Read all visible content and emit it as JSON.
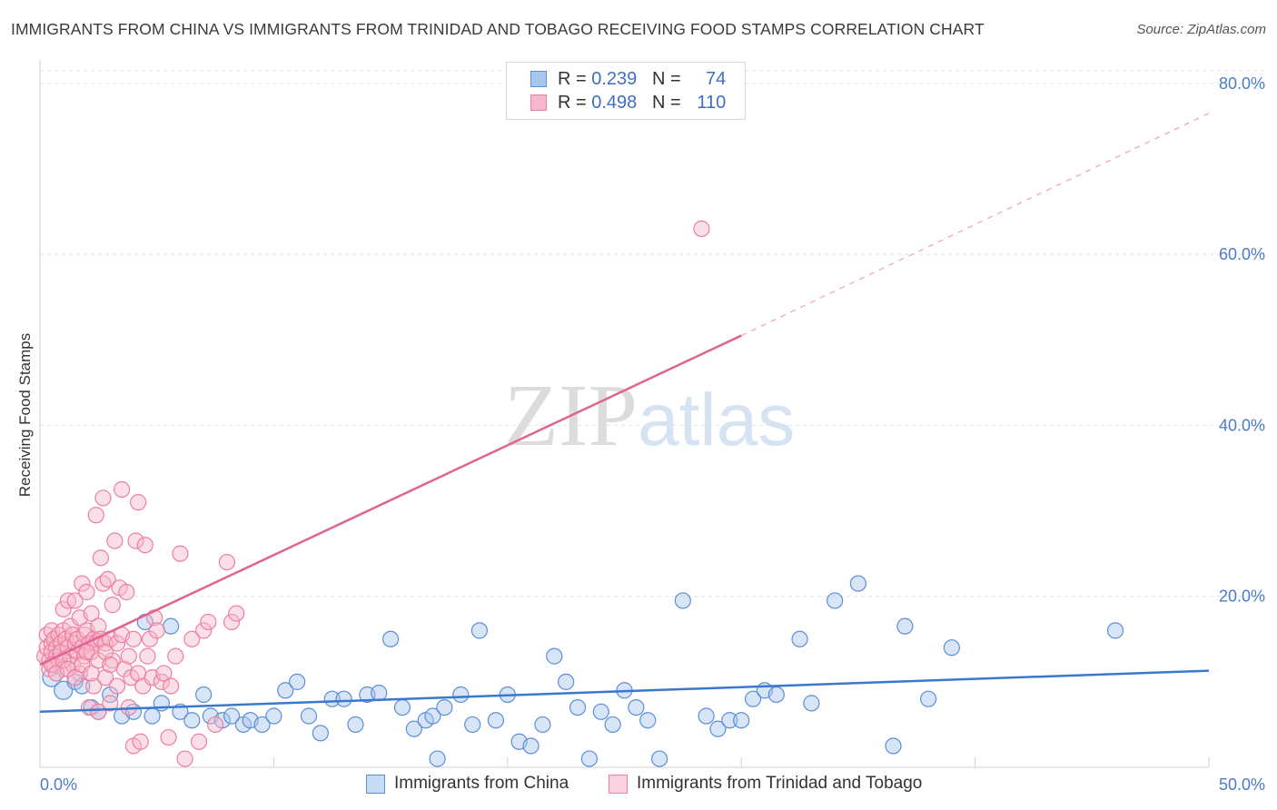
{
  "title": "IMMIGRANTS FROM CHINA VS IMMIGRANTS FROM TRINIDAD AND TOBAGO RECEIVING FOOD STAMPS CORRELATION CHART",
  "source": "Source: ZipAtlas.com",
  "watermark": {
    "zip": "ZIP",
    "atlas": "atlas"
  },
  "legend": {
    "r_label": "R =",
    "n_label": "N =",
    "rows": [
      {
        "r": "0.239",
        "n": "74"
      },
      {
        "r": "0.498",
        "n": "110"
      }
    ]
  },
  "bottom_legend": [
    "Immigrants from China",
    "Immigrants from Trinidad and Tobago"
  ],
  "colors": {
    "china_fill": "#a9c6ec",
    "china_stroke": "#5b8fd6",
    "china_line": "#3a78d0",
    "tt_fill": "#f6b7ca",
    "tt_stroke": "#ec7fa2",
    "tt_line": "#e0648e",
    "tick": "#4a7cc7",
    "grid": "#e3e3e3"
  },
  "chart_data": {
    "type": "scatter",
    "title": "IMMIGRANTS FROM CHINA VS IMMIGRANTS FROM TRINIDAD AND TOBAGO RECEIVING FOOD STAMPS CORRELATION CHART",
    "xlabel": "",
    "ylabel": "Receiving Food Stamps",
    "xlim": [
      0,
      50
    ],
    "ylim": [
      0,
      82
    ],
    "x_tick_labels": [
      "0.0%",
      "50.0%"
    ],
    "y_ticks": [
      20,
      40,
      60,
      80
    ],
    "y_tick_labels": [
      "20.0%",
      "40.0%",
      "60.0%",
      "80.0%"
    ],
    "grid": true,
    "series": [
      {
        "name": "Immigrants from China",
        "r": 0.239,
        "n": 74,
        "trend": {
          "x": [
            0,
            50
          ],
          "y": [
            6.5,
            11.3
          ],
          "dashed_from": null
        },
        "points": [
          [
            0.5,
            10.5
          ],
          [
            1.0,
            9.0
          ],
          [
            1.5,
            10.0
          ],
          [
            1.8,
            9.5
          ],
          [
            2.2,
            7.0
          ],
          [
            2.5,
            6.5
          ],
          [
            3.0,
            8.5
          ],
          [
            3.5,
            6.0
          ],
          [
            4.0,
            6.5
          ],
          [
            4.5,
            17.0
          ],
          [
            4.8,
            6.0
          ],
          [
            5.2,
            7.5
          ],
          [
            5.6,
            16.5
          ],
          [
            6.0,
            6.5
          ],
          [
            6.5,
            5.5
          ],
          [
            7.0,
            8.5
          ],
          [
            7.3,
            6.0
          ],
          [
            7.8,
            5.5
          ],
          [
            8.2,
            6.0
          ],
          [
            8.7,
            5.0
          ],
          [
            9.0,
            5.5
          ],
          [
            9.5,
            5.0
          ],
          [
            10.0,
            6.0
          ],
          [
            10.5,
            9.0
          ],
          [
            11.0,
            10.0
          ],
          [
            11.5,
            6.0
          ],
          [
            12.0,
            4.0
          ],
          [
            12.5,
            8.0
          ],
          [
            13.0,
            8.0
          ],
          [
            13.5,
            5.0
          ],
          [
            14.0,
            8.5
          ],
          [
            14.5,
            8.7
          ],
          [
            15.0,
            15.0
          ],
          [
            15.5,
            7.0
          ],
          [
            16.0,
            4.5
          ],
          [
            16.5,
            5.5
          ],
          [
            16.8,
            6.0
          ],
          [
            17.0,
            1.0
          ],
          [
            17.3,
            7.0
          ],
          [
            18.0,
            8.5
          ],
          [
            18.5,
            5.0
          ],
          [
            18.8,
            16.0
          ],
          [
            19.5,
            5.5
          ],
          [
            20.0,
            8.5
          ],
          [
            20.5,
            3.0
          ],
          [
            21.0,
            2.5
          ],
          [
            21.5,
            5.0
          ],
          [
            22.0,
            13.0
          ],
          [
            22.5,
            10.0
          ],
          [
            23.0,
            7.0
          ],
          [
            23.5,
            1.0
          ],
          [
            24.0,
            6.5
          ],
          [
            24.5,
            5.0
          ],
          [
            25.0,
            9.0
          ],
          [
            25.5,
            7.0
          ],
          [
            26.0,
            5.5
          ],
          [
            26.5,
            1.0
          ],
          [
            28.5,
            6.0
          ],
          [
            29.0,
            4.5
          ],
          [
            29.5,
            5.5
          ],
          [
            30.0,
            5.5
          ],
          [
            30.5,
            8.0
          ],
          [
            31.0,
            9.0
          ],
          [
            31.5,
            8.5
          ],
          [
            32.5,
            15.0
          ],
          [
            33.0,
            7.5
          ],
          [
            34.0,
            19.5
          ],
          [
            35.0,
            21.5
          ],
          [
            36.5,
            2.5
          ],
          [
            37.0,
            16.5
          ],
          [
            38.0,
            8.0
          ],
          [
            39.0,
            14.0
          ],
          [
            46.0,
            16.0
          ],
          [
            27.5,
            19.5
          ]
        ]
      },
      {
        "name": "Immigrants from Trinidad and Tobago",
        "r": 0.498,
        "n": 110,
        "trend": {
          "x": [
            0,
            30,
            50
          ],
          "y": [
            12.0,
            50.5,
            76.5
          ],
          "dashed_from": 30
        },
        "points": [
          [
            0.2,
            13.0
          ],
          [
            0.3,
            14.0
          ],
          [
            0.3,
            15.5
          ],
          [
            0.4,
            12.5
          ],
          [
            0.4,
            11.5
          ],
          [
            0.5,
            14.5
          ],
          [
            0.5,
            16.0
          ],
          [
            0.5,
            13.5
          ],
          [
            0.6,
            12.0
          ],
          [
            0.6,
            15.0
          ],
          [
            0.7,
            14.0
          ],
          [
            0.7,
            13.0
          ],
          [
            0.8,
            15.5
          ],
          [
            0.8,
            12.5
          ],
          [
            0.9,
            14.5
          ],
          [
            0.9,
            13.5
          ],
          [
            1.0,
            16.0
          ],
          [
            1.0,
            11.5
          ],
          [
            1.0,
            18.5
          ],
          [
            1.1,
            15.0
          ],
          [
            1.2,
            14.0
          ],
          [
            1.2,
            19.5
          ],
          [
            1.3,
            13.0
          ],
          [
            1.3,
            16.5
          ],
          [
            1.4,
            15.5
          ],
          [
            1.4,
            12.0
          ],
          [
            1.5,
            14.5
          ],
          [
            1.5,
            19.5
          ],
          [
            1.6,
            13.5
          ],
          [
            1.6,
            15.0
          ],
          [
            1.7,
            11.0
          ],
          [
            1.7,
            17.5
          ],
          [
            1.8,
            14.0
          ],
          [
            1.8,
            21.5
          ],
          [
            1.9,
            15.5
          ],
          [
            1.9,
            13.0
          ],
          [
            2.0,
            16.0
          ],
          [
            2.0,
            20.5
          ],
          [
            2.1,
            14.5
          ],
          [
            2.1,
            7.0
          ],
          [
            2.2,
            13.5
          ],
          [
            2.2,
            18.0
          ],
          [
            2.3,
            15.0
          ],
          [
            2.3,
            9.5
          ],
          [
            2.4,
            14.5
          ],
          [
            2.4,
            29.5
          ],
          [
            2.5,
            16.5
          ],
          [
            2.5,
            6.5
          ],
          [
            2.6,
            24.5
          ],
          [
            2.6,
            15.0
          ],
          [
            2.7,
            31.5
          ],
          [
            2.7,
            21.5
          ],
          [
            2.8,
            14.5
          ],
          [
            2.8,
            10.5
          ],
          [
            2.9,
            22.0
          ],
          [
            3.0,
            15.0
          ],
          [
            3.0,
            7.5
          ],
          [
            3.1,
            19.0
          ],
          [
            3.1,
            12.5
          ],
          [
            3.2,
            26.5
          ],
          [
            3.3,
            14.5
          ],
          [
            3.3,
            9.5
          ],
          [
            3.4,
            21.0
          ],
          [
            3.5,
            32.5
          ],
          [
            3.5,
            15.5
          ],
          [
            3.6,
            11.5
          ],
          [
            3.7,
            20.5
          ],
          [
            3.8,
            13.0
          ],
          [
            3.8,
            7.0
          ],
          [
            3.9,
            10.5
          ],
          [
            4.0,
            15.0
          ],
          [
            4.0,
            2.5
          ],
          [
            4.1,
            26.5
          ],
          [
            4.2,
            31.0
          ],
          [
            4.2,
            11.0
          ],
          [
            4.3,
            3.0
          ],
          [
            4.4,
            9.5
          ],
          [
            4.5,
            26.0
          ],
          [
            4.6,
            13.0
          ],
          [
            4.7,
            15.0
          ],
          [
            4.8,
            10.5
          ],
          [
            4.9,
            17.5
          ],
          [
            5.0,
            16.0
          ],
          [
            5.2,
            10.0
          ],
          [
            5.3,
            11.0
          ],
          [
            5.5,
            3.5
          ],
          [
            5.6,
            9.5
          ],
          [
            5.8,
            13.0
          ],
          [
            6.0,
            25.0
          ],
          [
            6.2,
            1.0
          ],
          [
            6.5,
            15.0
          ],
          [
            6.8,
            3.0
          ],
          [
            7.0,
            16.0
          ],
          [
            7.2,
            17.0
          ],
          [
            7.5,
            5.0
          ],
          [
            8.0,
            24.0
          ],
          [
            8.2,
            17.0
          ],
          [
            8.4,
            18.0
          ],
          [
            0.5,
            12.0
          ],
          [
            0.7,
            11.0
          ],
          [
            1.0,
            12.5
          ],
          [
            1.2,
            11.5
          ],
          [
            1.5,
            10.5
          ],
          [
            1.8,
            12.0
          ],
          [
            2.0,
            13.5
          ],
          [
            2.2,
            11.0
          ],
          [
            2.5,
            12.5
          ],
          [
            2.8,
            13.5
          ],
          [
            3.0,
            12.0
          ],
          [
            28.3,
            63.0
          ]
        ]
      }
    ]
  }
}
